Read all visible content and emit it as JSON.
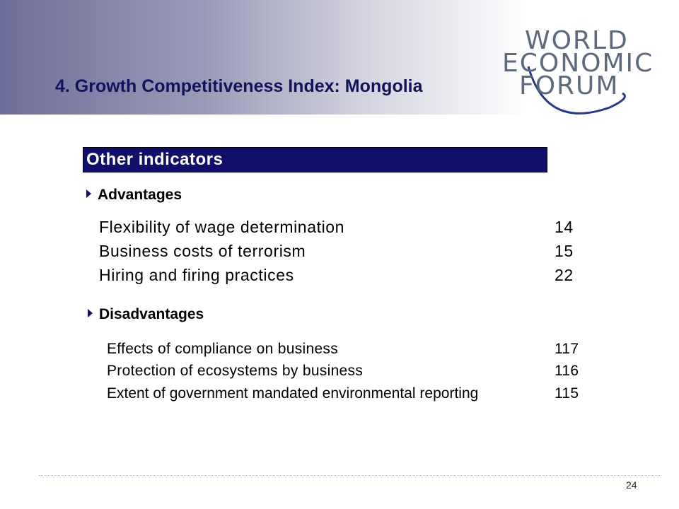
{
  "slide": {
    "title": "4. Growth Competitiveness Index: Mongolia",
    "logo": {
      "line1": "WORLD",
      "line2": "ECONOMIC",
      "line3": "FORUM"
    },
    "section_heading": "Other indicators",
    "advantages": {
      "label": "Advantages",
      "items": [
        {
          "name": "Flexibility of wage determination",
          "rank": "14"
        },
        {
          "name": "Business costs of terrorism",
          "rank": "15"
        },
        {
          "name": "Hiring and firing practices",
          "rank": "22"
        }
      ]
    },
    "disadvantages": {
      "label": "Disadvantages",
      "items": [
        {
          "name": "Effects of compliance on business",
          "rank": "117"
        },
        {
          "name": "Protection of ecosystems by business",
          "rank": "116"
        },
        {
          "name": "Extent of government mandated environmental reporting",
          "rank": "115"
        }
      ]
    },
    "page_number": "24"
  },
  "colors": {
    "title": "#13135a",
    "section_bar": "#10106a",
    "logo": "#5e6a7c",
    "banner_start": "#6e6e9a"
  },
  "icons": {
    "bullet": "triangle-right-icon",
    "logo_arc": "globe-arc-icon"
  }
}
